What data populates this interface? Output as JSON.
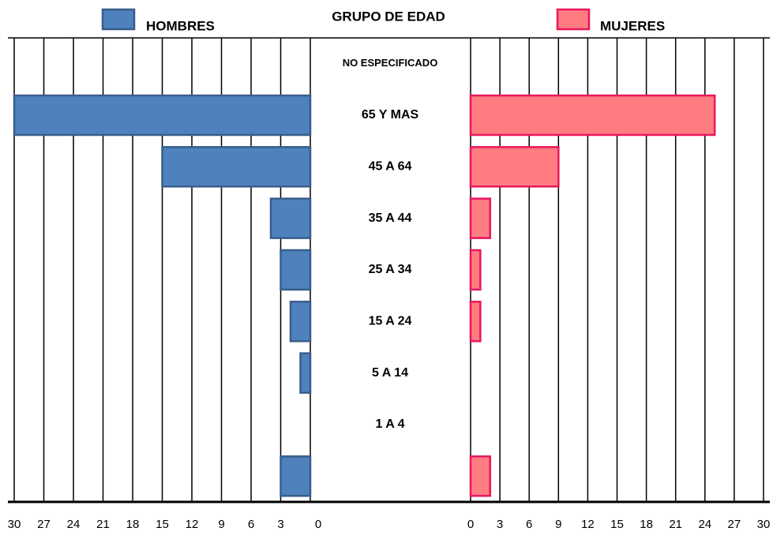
{
  "chart_data": {
    "type": "pyramid",
    "title": "GRUPO DE EDAD",
    "categories": [
      "NO ESPECIFICADO",
      "65 Y MAS",
      "45 A 64",
      "35 A 44",
      "25 A 34",
      "15 A 24",
      "5 A 14",
      "1 A 4",
      null
    ],
    "series": [
      {
        "name": "HOMBRES",
        "color": "#4f81bd",
        "edge_color": "#385d8a",
        "values": [
          0,
          30,
          15,
          4,
          3,
          2,
          1,
          0,
          3
        ]
      },
      {
        "name": "MUJERES",
        "color": "#ff7c80",
        "edge_color": "#e8175d",
        "values": [
          0,
          25,
          9,
          2,
          1,
          1,
          0,
          0,
          2
        ]
      }
    ],
    "xlim": [
      0,
      30
    ],
    "xticks": [
      0,
      3,
      6,
      9,
      12,
      15,
      18,
      21,
      24,
      27,
      30
    ],
    "grid": true
  }
}
